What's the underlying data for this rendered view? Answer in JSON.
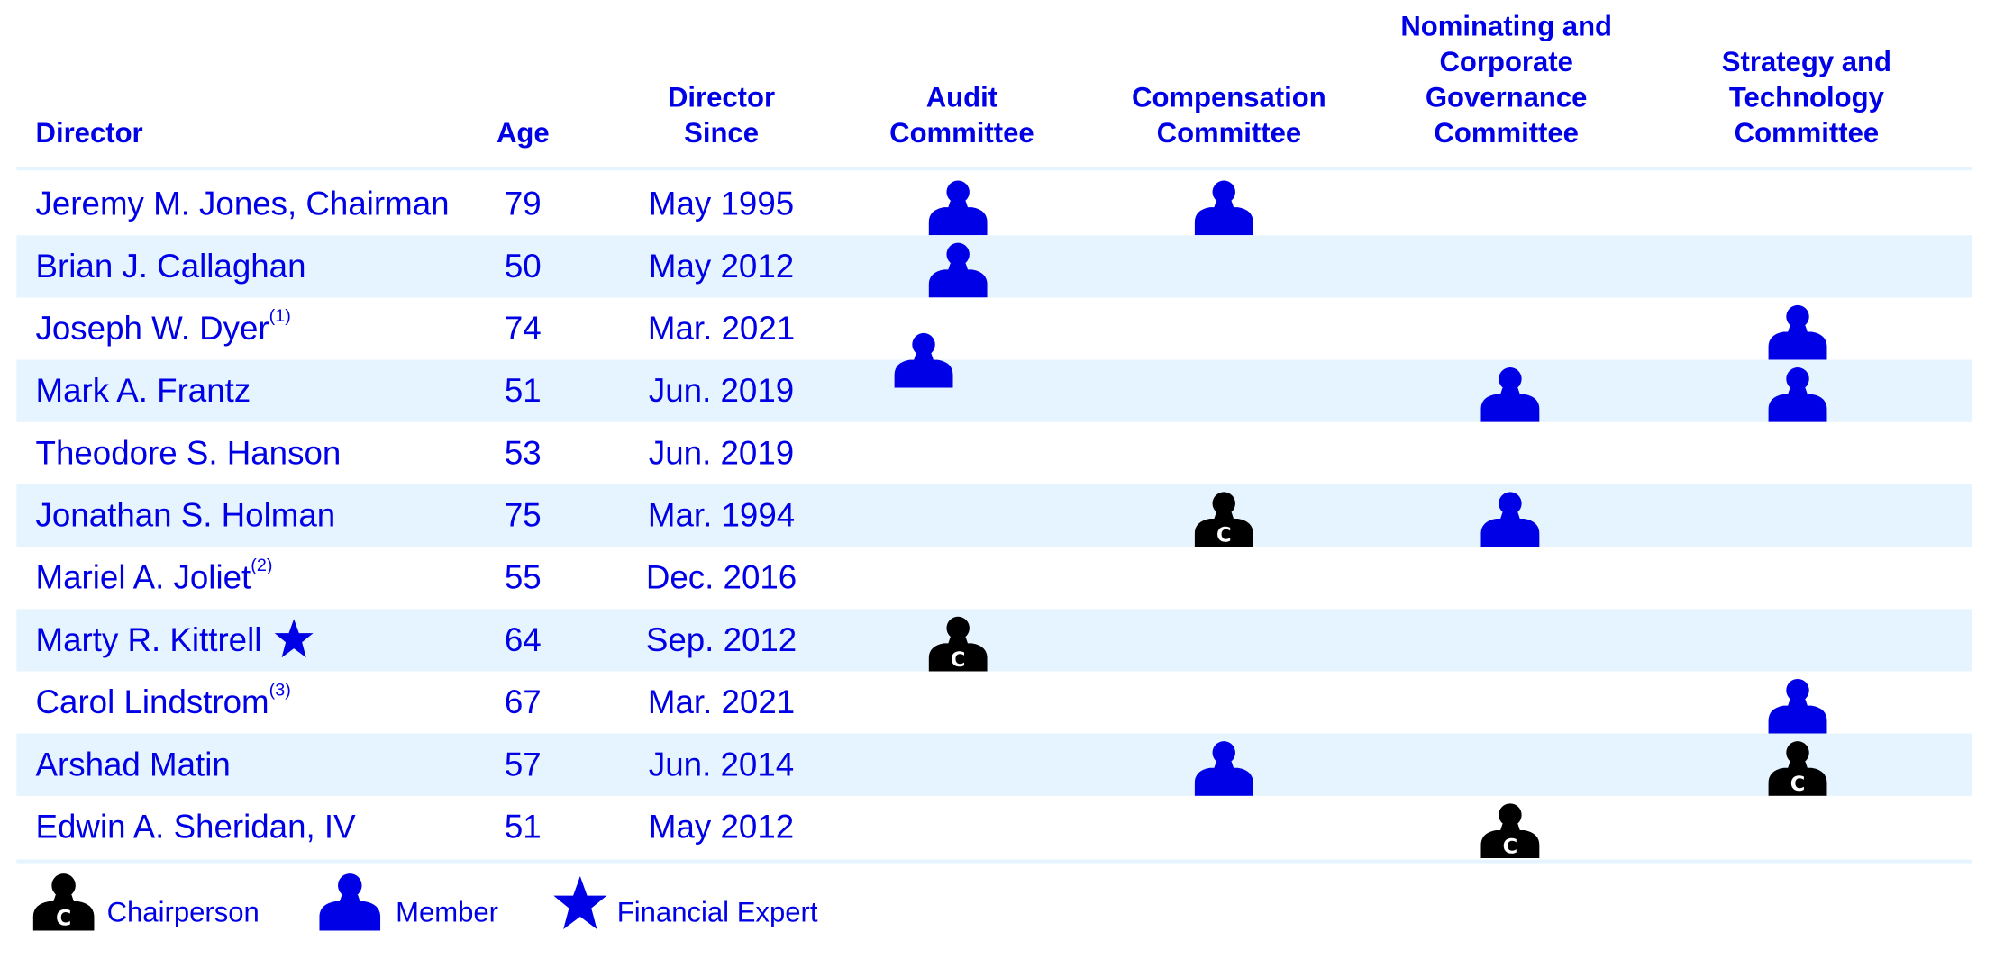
{
  "headers": {
    "director": "Director",
    "age": "Age",
    "director_since": "Director\nSince",
    "audit": "Audit\nCommittee",
    "compensation": "Compensation\nCommittee",
    "nominating": "Nominating and\nCorporate\nGovernance\nCommittee",
    "strategy": "Strategy and\nTechnology\nCommittee"
  },
  "rows": [
    {
      "name": "Jeremy M. Jones, Chairman",
      "note": "",
      "financial_expert": false,
      "age": "79",
      "since": "May 1995",
      "audit": "member",
      "compensation": "member",
      "nominating": "",
      "strategy": ""
    },
    {
      "name": "Brian J. Callaghan",
      "note": "",
      "financial_expert": false,
      "age": "50",
      "since": "May 2012",
      "audit": "member",
      "compensation": "",
      "nominating": "",
      "strategy": ""
    },
    {
      "name": "Joseph W. Dyer",
      "note": "(1)",
      "financial_expert": false,
      "age": "74",
      "since": "Mar. 2021",
      "audit": "",
      "compensation": "",
      "nominating": "",
      "strategy": "member"
    },
    {
      "name": "Mark A. Frantz",
      "note": "",
      "financial_expert": false,
      "age": "51",
      "since": "Jun. 2019",
      "audit": "member",
      "compensation": "",
      "nominating": "member",
      "strategy": "member"
    },
    {
      "name": "Theodore S. Hanson",
      "note": "",
      "financial_expert": false,
      "age": "53",
      "since": "Jun. 2019",
      "audit": "",
      "compensation": "",
      "nominating": "",
      "strategy": ""
    },
    {
      "name": "Jonathan S. Holman",
      "note": "",
      "financial_expert": false,
      "age": "75",
      "since": "Mar. 1994",
      "audit": "",
      "compensation": "chair",
      "nominating": "member",
      "strategy": ""
    },
    {
      "name": "Mariel A. Joliet",
      "note": "(2)",
      "financial_expert": false,
      "age": "55",
      "since": "Dec. 2016",
      "audit": "",
      "compensation": "",
      "nominating": "",
      "strategy": ""
    },
    {
      "name": "Marty R. Kittrell",
      "note": "",
      "financial_expert": true,
      "age": "64",
      "since": "Sep. 2012",
      "audit": "chair",
      "compensation": "",
      "nominating": "",
      "strategy": ""
    },
    {
      "name": "Carol Lindstrom",
      "note": "(3)",
      "financial_expert": false,
      "age": "67",
      "since": "Mar. 2021",
      "audit": "",
      "compensation": "",
      "nominating": "",
      "strategy": "member"
    },
    {
      "name": "Arshad Matin",
      "note": "",
      "financial_expert": false,
      "age": "57",
      "since": "Jun. 2014",
      "audit": "",
      "compensation": "member",
      "nominating": "",
      "strategy": "chair"
    },
    {
      "name": "Edwin A. Sheridan, IV",
      "note": "",
      "financial_expert": false,
      "age": "51",
      "since": "May 2012",
      "audit": "",
      "compensation": "",
      "nominating": "chair",
      "strategy": ""
    }
  ],
  "legend": {
    "chair": "Chairperson",
    "member": "Member",
    "expert": "Financial Expert"
  },
  "colors": {
    "text": "#0000e6",
    "member_icon": "#0000e6",
    "chair_icon": "#000000",
    "row_shade": "#e6f4ff"
  },
  "icons": {
    "chair": "person-chair-icon",
    "member": "person-member-icon",
    "expert": "star-icon"
  }
}
